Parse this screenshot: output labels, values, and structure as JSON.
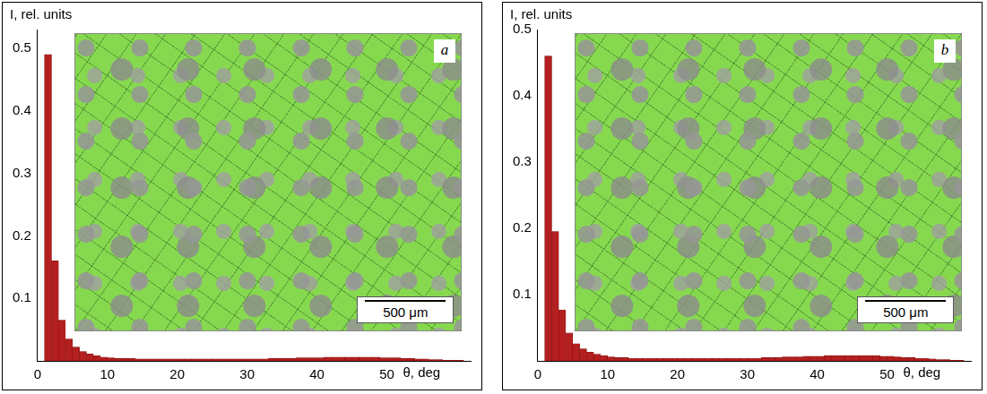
{
  "chart_data": [
    {
      "type": "histogram",
      "panel_label": "a",
      "scale_bar_label": "500 μm",
      "xlabel": "θ, deg",
      "ylabel": "I, rel. units",
      "color": "#b41f1f",
      "grid": false,
      "bins": [
        1,
        2,
        3,
        4,
        5,
        6,
        7,
        8,
        9,
        10,
        11,
        12,
        13,
        14,
        15,
        16,
        17,
        18,
        19,
        20,
        21,
        22,
        23,
        24,
        25,
        26,
        27,
        28,
        29,
        30,
        31,
        32,
        33,
        34,
        35,
        36,
        37,
        38,
        39,
        40,
        41,
        42,
        43,
        44,
        45,
        46,
        47,
        48,
        49,
        50,
        51,
        52,
        53,
        54,
        55,
        56,
        57,
        58,
        59,
        60,
        61
      ],
      "values": [
        0.49,
        0.16,
        0.065,
        0.035,
        0.022,
        0.015,
        0.011,
        0.008,
        0.006,
        0.005,
        0.004,
        0.004,
        0.004,
        0.003,
        0.003,
        0.003,
        0.003,
        0.003,
        0.003,
        0.003,
        0.003,
        0.003,
        0.003,
        0.003,
        0.003,
        0.003,
        0.003,
        0.003,
        0.003,
        0.003,
        0.003,
        0.003,
        0.004,
        0.004,
        0.004,
        0.004,
        0.005,
        0.005,
        0.005,
        0.005,
        0.006,
        0.006,
        0.006,
        0.006,
        0.006,
        0.006,
        0.006,
        0.006,
        0.005,
        0.005,
        0.005,
        0.004,
        0.004,
        0.003,
        0.003,
        0.002,
        0.002,
        0.001,
        0.001,
        0.001
      ],
      "xlim": [
        0,
        62
      ],
      "xticks": [
        0,
        10,
        20,
        30,
        40,
        50
      ],
      "ylim": [
        0,
        0.53
      ],
      "yticks": [
        0.1,
        0.2,
        0.3,
        0.4,
        0.5
      ]
    },
    {
      "type": "histogram",
      "panel_label": "b",
      "scale_bar_label": "500 μm",
      "xlabel": "θ, deg",
      "ylabel": "I, rel. units",
      "color": "#b41f1f",
      "grid": false,
      "bins": [
        1,
        2,
        3,
        4,
        5,
        6,
        7,
        8,
        9,
        10,
        11,
        12,
        13,
        14,
        15,
        16,
        17,
        18,
        19,
        20,
        21,
        22,
        23,
        24,
        25,
        26,
        27,
        28,
        29,
        30,
        31,
        32,
        33,
        34,
        35,
        36,
        37,
        38,
        39,
        40,
        41,
        42,
        43,
        44,
        45,
        46,
        47,
        48,
        49,
        50,
        51,
        52,
        53,
        54,
        55,
        56,
        57,
        58,
        59,
        60,
        61
      ],
      "values": [
        0.46,
        0.195,
        0.077,
        0.042,
        0.026,
        0.018,
        0.013,
        0.01,
        0.008,
        0.006,
        0.005,
        0.005,
        0.004,
        0.004,
        0.004,
        0.004,
        0.004,
        0.004,
        0.004,
        0.004,
        0.004,
        0.004,
        0.004,
        0.004,
        0.004,
        0.004,
        0.004,
        0.004,
        0.004,
        0.004,
        0.004,
        0.005,
        0.005,
        0.005,
        0.006,
        0.006,
        0.006,
        0.007,
        0.007,
        0.007,
        0.008,
        0.008,
        0.008,
        0.008,
        0.008,
        0.008,
        0.008,
        0.008,
        0.007,
        0.007,
        0.006,
        0.005,
        0.005,
        0.004,
        0.004,
        0.003,
        0.002,
        0.002,
        0.001,
        0.001
      ],
      "xlim": [
        0,
        62
      ],
      "xticks": [
        0,
        10,
        20,
        30,
        40,
        50
      ],
      "ylim": [
        0,
        0.5
      ],
      "yticks": [
        0.1,
        0.2,
        0.3,
        0.4,
        0.5
      ]
    }
  ]
}
